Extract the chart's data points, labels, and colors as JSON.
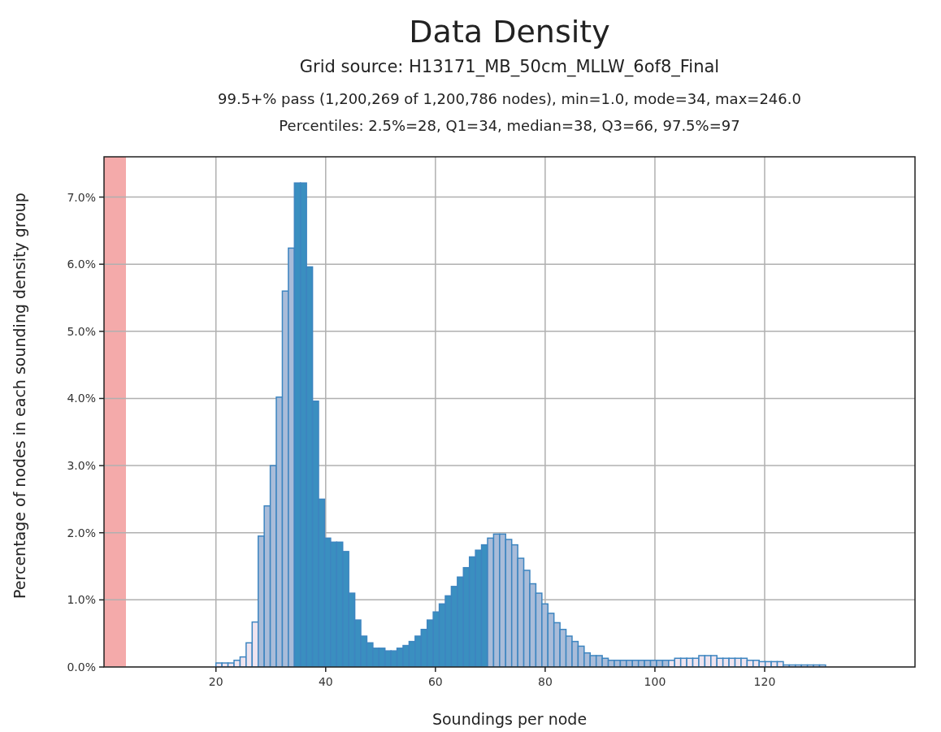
{
  "chart_data": {
    "type": "histogram",
    "title": "Data Density",
    "subtitle": "Grid source: H13171_MB_50cm_MLLW_6of8_Final",
    "annotations": [
      "99.5+% pass (1,200,269 of 1,200,786 nodes), min=1.0, mode=34, max=246.0",
      "Percentiles: 2.5%=28, Q1=34, median=38, Q3=66, 97.5%=97"
    ],
    "xlabel": "Soundings per node",
    "ylabel": "Percentage of nodes in each sounding density group",
    "bins": [
      20.0,
      21.1,
      22.2,
      23.3,
      24.4,
      25.5,
      26.6,
      27.7,
      28.8,
      29.9,
      31.0,
      32.1,
      33.2,
      34.3,
      35.4,
      36.5,
      37.6,
      38.7,
      39.8,
      40.9,
      42.0,
      43.1,
      44.2,
      45.3,
      46.4,
      47.5,
      48.6,
      49.7,
      50.8,
      51.9,
      53.0,
      54.1,
      55.2,
      56.3,
      57.4,
      58.5,
      59.6,
      60.7,
      61.8,
      62.9,
      64.0,
      65.1,
      66.2,
      67.3,
      68.4,
      69.5,
      70.6,
      71.7,
      72.8,
      73.9,
      75.0,
      76.1,
      77.2,
      78.3,
      79.4,
      80.5,
      81.6,
      82.7,
      83.8,
      84.9,
      86.0,
      87.1,
      88.2,
      89.3,
      90.4,
      91.5,
      92.6,
      93.7,
      94.8,
      95.9,
      97.0,
      98.1,
      99.2,
      100.3,
      101.4,
      102.5,
      103.6,
      104.7,
      105.8,
      106.9,
      108.0,
      109.1,
      110.2,
      111.3,
      112.4,
      113.5,
      114.6,
      115.7,
      116.8,
      117.9,
      119.0,
      120.1,
      121.2,
      122.3,
      123.4,
      124.5,
      125.6,
      126.7,
      127.8,
      128.9,
      130.0,
      131.1
    ],
    "values": [
      0.06,
      0.06,
      0.06,
      0.1,
      0.15,
      0.36,
      0.67,
      1.95,
      2.4,
      3.0,
      4.02,
      5.6,
      6.24,
      7.21,
      7.21,
      5.96,
      3.96,
      2.5,
      1.92,
      1.86,
      1.86,
      1.72,
      1.1,
      0.7,
      0.46,
      0.36,
      0.28,
      0.28,
      0.24,
      0.24,
      0.28,
      0.32,
      0.38,
      0.46,
      0.56,
      0.7,
      0.82,
      0.94,
      1.06,
      1.2,
      1.34,
      1.48,
      1.64,
      1.74,
      1.82,
      1.92,
      1.98,
      1.98,
      1.9,
      1.82,
      1.62,
      1.44,
      1.24,
      1.1,
      0.94,
      0.8,
      0.66,
      0.56,
      0.46,
      0.38,
      0.31,
      0.21,
      0.17,
      0.17,
      0.13,
      0.1,
      0.1,
      0.1,
      0.1,
      0.1,
      0.1,
      0.1,
      0.1,
      0.1,
      0.1,
      0.1,
      0.13,
      0.13,
      0.13,
      0.13,
      0.17,
      0.17,
      0.17,
      0.13,
      0.13,
      0.13,
      0.13,
      0.13,
      0.1,
      0.1,
      0.08,
      0.08,
      0.08,
      0.08,
      0.03,
      0.03,
      0.03,
      0.03,
      0.03,
      0.03,
      0.03
    ],
    "colors": [
      "#efe4ef",
      "#efe4ef",
      "#efe4ef",
      "#efe4ef",
      "#efe4ef",
      "#efe4ef",
      "#efe4ef",
      "#a9bcd9",
      "#a9bcd9",
      "#a9bcd9",
      "#a9bcd9",
      "#a9bcd9",
      "#a9bcd9",
      "#3a8fc0",
      "#3a8fc0",
      "#3a8fc0",
      "#3a8fc0",
      "#3a8fc0",
      "#3a8fc0",
      "#3a8fc0",
      "#3a8fc0",
      "#3a8fc0",
      "#3a8fc0",
      "#3a8fc0",
      "#3a8fc0",
      "#3a8fc0",
      "#3a8fc0",
      "#3a8fc0",
      "#3a8fc0",
      "#3a8fc0",
      "#3a8fc0",
      "#3a8fc0",
      "#3a8fc0",
      "#3a8fc0",
      "#3a8fc0",
      "#3a8fc0",
      "#3a8fc0",
      "#3a8fc0",
      "#3a8fc0",
      "#3a8fc0",
      "#3a8fc0",
      "#3a8fc0",
      "#3a8fc0",
      "#3a8fc0",
      "#3a8fc0",
      "#a9bcd9",
      "#a9bcd9",
      "#a9bcd9",
      "#a9bcd9",
      "#a9bcd9",
      "#a9bcd9",
      "#a9bcd9",
      "#a9bcd9",
      "#a9bcd9",
      "#a9bcd9",
      "#a9bcd9",
      "#a9bcd9",
      "#a9bcd9",
      "#a9bcd9",
      "#a9bcd9",
      "#a9bcd9",
      "#a9bcd9",
      "#a9bcd9",
      "#a9bcd9",
      "#a9bcd9",
      "#a9bcd9",
      "#a9bcd9",
      "#a9bcd9",
      "#a9bcd9",
      "#a9bcd9",
      "#a9bcd9",
      "#a9bcd9",
      "#a9bcd9",
      "#a9bcd9",
      "#a9bcd9",
      "#efe4ef",
      "#efe4ef",
      "#efe4ef",
      "#efe4ef",
      "#efe4ef",
      "#efe4ef",
      "#efe4ef",
      "#efe4ef",
      "#efe4ef",
      "#efe4ef",
      "#efe4ef",
      "#efe4ef",
      "#efe4ef",
      "#efe4ef",
      "#efe4ef",
      "#efe4ef",
      "#efe4ef",
      "#efe4ef",
      "#efe4ef",
      "#efe4ef",
      "#efe4ef",
      "#efe4ef",
      "#efe4ef",
      "#efe4ef",
      "#efe4ef",
      "#efe4ef"
    ],
    "color": "#3d85c0",
    "xlim": [
      -0.4,
      147.4
    ],
    "xticks": [
      20,
      40,
      60,
      80,
      100,
      120
    ],
    "ylim": [
      0,
      7.6
    ],
    "yticks": [
      {
        "value": 0,
        "label": "0.0%"
      },
      {
        "value": 1,
        "label": "1.0%"
      },
      {
        "value": 2,
        "label": "2.0%"
      },
      {
        "value": 3,
        "label": "3.0%"
      },
      {
        "value": 4,
        "label": "4.0%"
      },
      {
        "value": 5,
        "label": "5.0%"
      },
      {
        "value": 6,
        "label": "6.0%"
      },
      {
        "value": 7,
        "label": "7.0%"
      }
    ],
    "bands": [
      {
        "axis": "x",
        "from": -0.4,
        "to": 3.6,
        "color": "#f4aaaa"
      }
    ],
    "grid": true
  }
}
